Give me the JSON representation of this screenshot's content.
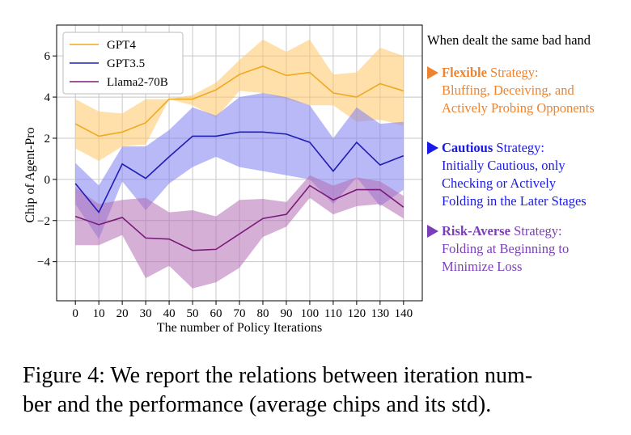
{
  "chart_data": {
    "type": "line",
    "x": [
      0,
      10,
      20,
      30,
      40,
      50,
      60,
      70,
      80,
      90,
      100,
      110,
      120,
      130,
      140
    ],
    "xlabel": "The number of Policy Iterations",
    "ylabel": "Chip of Agent-Pro",
    "xticks": [
      "0",
      "10",
      "20",
      "30",
      "40",
      "50",
      "60",
      "70",
      "80",
      "90",
      "100",
      "110",
      "120",
      "130",
      "140"
    ],
    "yticks": [
      {
        "v": -4,
        "label": "−4"
      },
      {
        "v": -2,
        "label": "−2"
      },
      {
        "v": 0,
        "label": "0"
      },
      {
        "v": 2,
        "label": "2"
      },
      {
        "v": 4,
        "label": "4"
      },
      {
        "v": 6,
        "label": "6"
      }
    ],
    "xlim": [
      -8,
      148
    ],
    "ylim": [
      -5.9,
      7.5
    ],
    "grid": true,
    "legend_position": "top-left",
    "series": [
      {
        "name": "GPT4",
        "color": "#f0a81e",
        "fill": "#ffc766",
        "values": [
          2.7,
          2.1,
          2.3,
          2.75,
          3.9,
          3.9,
          4.35,
          5.1,
          5.5,
          5.05,
          5.2,
          4.2,
          4.0,
          4.65,
          4.3
        ],
        "upper": [
          3.9,
          3.3,
          3.2,
          3.9,
          3.9,
          4.1,
          4.7,
          5.8,
          6.8,
          6.2,
          6.8,
          5.1,
          5.2,
          6.4,
          6.0
        ],
        "lower": [
          1.5,
          0.9,
          1.6,
          1.7,
          3.9,
          3.6,
          3.0,
          4.3,
          4.2,
          3.9,
          3.6,
          3.6,
          2.8,
          2.9,
          2.6
        ]
      },
      {
        "name": "GPT3.5",
        "color": "#1e1eb4",
        "fill": "#7f7ff0",
        "values": [
          -0.2,
          -1.6,
          0.75,
          0.05,
          1.1,
          2.1,
          2.1,
          2.3,
          2.3,
          2.2,
          1.8,
          0.4,
          1.8,
          0.7,
          1.15
        ],
        "upper": [
          0.8,
          -0.3,
          1.6,
          1.6,
          2.4,
          3.5,
          3.1,
          4.0,
          4.2,
          4.0,
          3.6,
          2.0,
          3.5,
          2.7,
          2.8
        ],
        "lower": [
          -1.2,
          -2.9,
          -0.1,
          -1.5,
          -0.2,
          0.6,
          1.1,
          0.6,
          0.4,
          0.2,
          0.0,
          -1.2,
          0.1,
          -1.3,
          -0.5
        ]
      },
      {
        "name": "Llama2-70B",
        "color": "#7a1a7a",
        "fill": "#b46eb4",
        "values": [
          -1.8,
          -2.2,
          -1.85,
          -2.85,
          -2.9,
          -3.45,
          -3.4,
          -2.65,
          -1.9,
          -1.7,
          -0.3,
          -1.0,
          -0.5,
          -0.5,
          -1.35
        ],
        "upper": [
          -0.4,
          -1.2,
          -1.0,
          -0.9,
          -1.6,
          -1.5,
          -1.8,
          -1.0,
          -0.95,
          -1.1,
          0.2,
          -0.3,
          0.1,
          -0.1,
          -0.8
        ],
        "lower": [
          -3.2,
          -3.2,
          -2.7,
          -4.8,
          -4.2,
          -5.3,
          -5.0,
          -4.3,
          -2.8,
          -2.3,
          -0.9,
          -1.7,
          -1.3,
          -1.2,
          -1.9
        ]
      }
    ]
  },
  "annotations": {
    "title": "When dealt the same bad hand",
    "items": [
      {
        "color": "#ee8430",
        "keyword": "Flexible",
        "rest": " Strategy:",
        "line2": "Bluffing, Deceiving, and",
        "line3": "Actively Probing Opponents"
      },
      {
        "color": "#1a1ae6",
        "keyword": "Cautious",
        "rest": " Strategy:",
        "line2": "Initially Cautious, only",
        "line3": "Checking or Actively",
        "line4": "Folding in the Later Stages"
      },
      {
        "color": "#7a3fb8",
        "keyword": "Risk-Averse",
        "rest": " Strategy:",
        "line2": "Folding at Beginning to",
        "line3": "Minimize Loss"
      }
    ]
  },
  "caption": "Figure 4: We report the relations between iteration number and the performance (average chips and its std).",
  "caption_line1": "Figure 4: We report the relations between iteration num-",
  "caption_line2": "ber and the performance (average chips and its std)."
}
